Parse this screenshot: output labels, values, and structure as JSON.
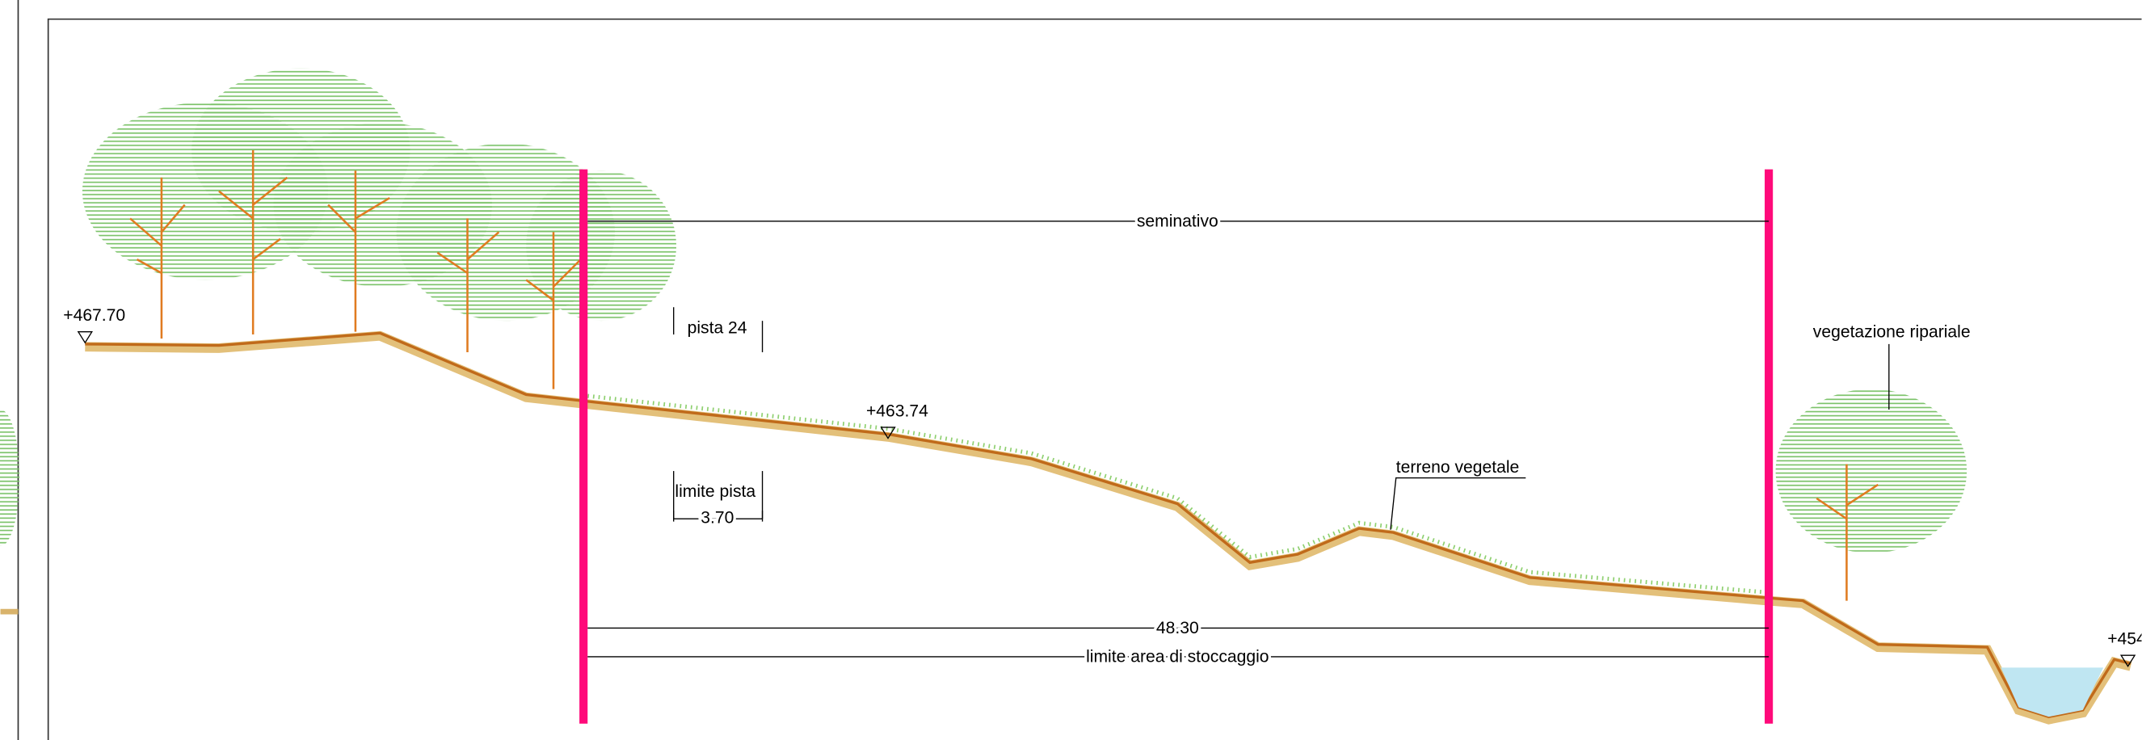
{
  "section": {
    "elevations": [
      "+467.70",
      "+463.74",
      "+454"
    ],
    "labels": {
      "seminativo": "seminativo",
      "pista": "pista 24",
      "limite_pista": "limite pista",
      "pista_width": "3.70",
      "riparian": "vegetazione ripariale",
      "topsoil": "terreno vegetale",
      "width": "48.30",
      "storage_limit": "limite area di stoccaggio"
    }
  }
}
